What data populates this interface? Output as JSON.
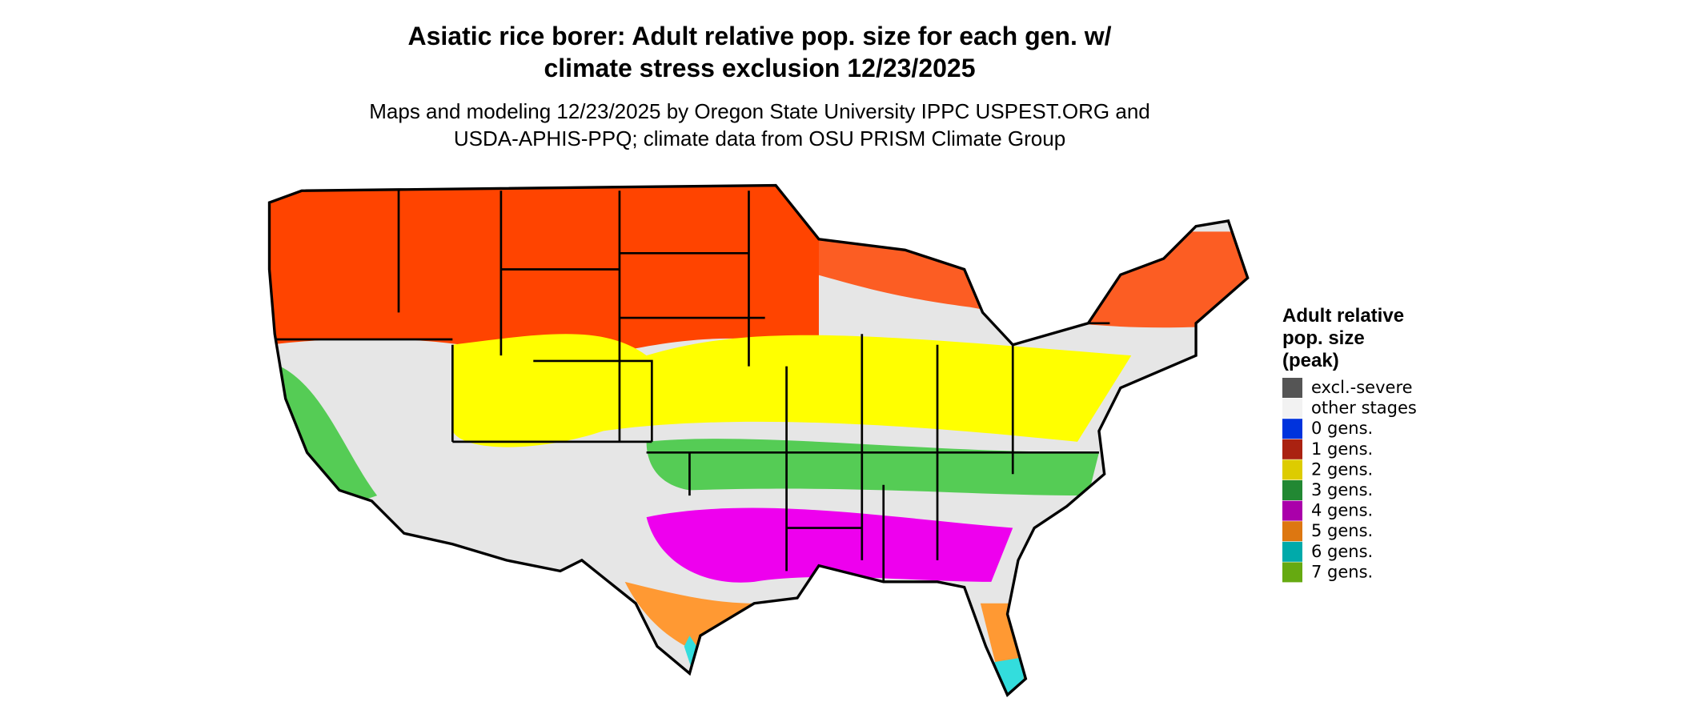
{
  "header": {
    "title_lines": [
      "Asiatic rice borer: Adult relative pop. size for each gen. w/",
      "climate stress exclusion 12/23/2025"
    ],
    "subtitle_lines": [
      "Maps and modeling 12/23/2025 by Oregon State University IPPC USPEST.ORG and",
      "USDA-APHIS-PPQ; climate data from OSU PRISM Climate Group"
    ]
  },
  "legend": {
    "title_lines": [
      "Adult relative",
      "pop. size",
      "(peak)"
    ],
    "items": [
      {
        "label": "excl.-severe",
        "color": "#555555"
      },
      {
        "label": "other stages",
        "color": "#f2f2f2"
      },
      {
        "label": "0 gens.",
        "color": "#0033dd"
      },
      {
        "label": "1 gens.",
        "color": "#aa2211"
      },
      {
        "label": "2 gens.",
        "color": "#ddcc00"
      },
      {
        "label": "3 gens.",
        "color": "#228833"
      },
      {
        "label": "4 gens.",
        "color": "#aa00aa"
      },
      {
        "label": "5 gens.",
        "color": "#dd7711"
      },
      {
        "label": "6 gens.",
        "color": "#00aaaa"
      },
      {
        "label": "7 gens.",
        "color": "#66aa11"
      }
    ]
  }
}
